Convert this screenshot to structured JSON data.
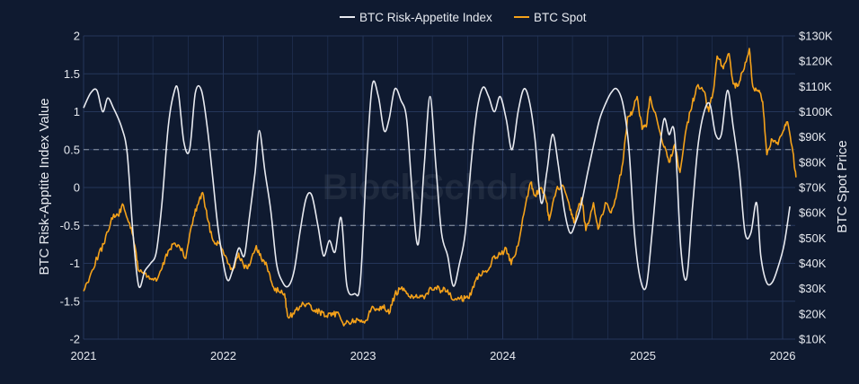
{
  "chart_data": {
    "type": "line",
    "watermark": "BlockScholes",
    "colors": {
      "background": "#0f1a30",
      "grid": "#25365a",
      "index_line": "#e8eaf0",
      "spot_line": "#f5a21a",
      "dashed_ref": "#8f99aa"
    },
    "x_ticks": [
      "2021",
      "2022",
      "2023",
      "2024",
      "2025",
      "2026"
    ],
    "y_left": {
      "label": "BTC Risk-Apptite Index Value",
      "range": [
        -2,
        2
      ],
      "ticks": [
        "2",
        "1.5",
        "1",
        "0.5",
        "0",
        "-0.5",
        "-1",
        "-1.5",
        "-2"
      ],
      "dashed_refs": [
        0.5,
        -0.5
      ]
    },
    "y_right": {
      "label": "BTC Spot Price",
      "range": [
        10000,
        130000
      ],
      "ticks": [
        "$130K",
        "$120K",
        "$110K",
        "$100K",
        "$90K",
        "$80K",
        "$70K",
        "$60K",
        "$50K",
        "$40K",
        "$30K",
        "$20K",
        "$10K"
      ]
    },
    "series": [
      {
        "name": "BTC Risk-Appetite Index",
        "axis": "left",
        "points": [
          [
            "2021-01-01",
            1.05
          ],
          [
            "2021-01-20",
            1.25
          ],
          [
            "2021-02-05",
            1.28
          ],
          [
            "2021-02-20",
            1.0
          ],
          [
            "2021-03-05",
            1.18
          ],
          [
            "2021-03-20",
            1.05
          ],
          [
            "2021-04-10",
            0.8
          ],
          [
            "2021-04-25",
            0.45
          ],
          [
            "2021-05-10",
            -0.6
          ],
          [
            "2021-05-25",
            -1.3
          ],
          [
            "2021-06-10",
            -1.1
          ],
          [
            "2021-06-25",
            -1.0
          ],
          [
            "2021-07-10",
            -0.85
          ],
          [
            "2021-07-25",
            -0.2
          ],
          [
            "2021-08-10",
            0.8
          ],
          [
            "2021-08-25",
            1.25
          ],
          [
            "2021-09-05",
            1.28
          ],
          [
            "2021-09-20",
            0.6
          ],
          [
            "2021-10-05",
            0.5
          ],
          [
            "2021-10-20",
            1.25
          ],
          [
            "2021-11-05",
            1.28
          ],
          [
            "2021-11-20",
            0.8
          ],
          [
            "2021-12-05",
            0.1
          ],
          [
            "2021-12-20",
            -0.6
          ],
          [
            "2022-01-10",
            -1.2
          ],
          [
            "2022-01-25",
            -1.1
          ],
          [
            "2022-02-10",
            -0.8
          ],
          [
            "2022-02-25",
            -0.9
          ],
          [
            "2022-03-10",
            -0.4
          ],
          [
            "2022-03-25",
            0.2
          ],
          [
            "2022-04-05",
            0.75
          ],
          [
            "2022-04-20",
            0.2
          ],
          [
            "2022-05-05",
            -0.3
          ],
          [
            "2022-05-20",
            -1.0
          ],
          [
            "2022-06-05",
            -1.25
          ],
          [
            "2022-06-20",
            -1.3
          ],
          [
            "2022-07-05",
            -1.1
          ],
          [
            "2022-07-20",
            -0.6
          ],
          [
            "2022-08-05",
            -0.15
          ],
          [
            "2022-08-20",
            -0.1
          ],
          [
            "2022-09-05",
            -0.5
          ],
          [
            "2022-09-20",
            -0.9
          ],
          [
            "2022-10-05",
            -0.7
          ],
          [
            "2022-10-20",
            -0.85
          ],
          [
            "2022-11-05",
            -0.4
          ],
          [
            "2022-11-20",
            -1.3
          ],
          [
            "2022-12-10",
            -1.4
          ],
          [
            "2022-12-25",
            -1.25
          ],
          [
            "2023-01-10",
            0.3
          ],
          [
            "2023-01-25",
            1.35
          ],
          [
            "2023-02-10",
            1.2
          ],
          [
            "2023-02-25",
            0.75
          ],
          [
            "2023-03-10",
            0.9
          ],
          [
            "2023-03-25",
            1.3
          ],
          [
            "2023-04-10",
            1.15
          ],
          [
            "2023-04-25",
            0.9
          ],
          [
            "2023-05-10",
            -0.1
          ],
          [
            "2023-05-25",
            -0.75
          ],
          [
            "2023-06-10",
            0.3
          ],
          [
            "2023-06-25",
            1.2
          ],
          [
            "2023-07-10",
            0.3
          ],
          [
            "2023-07-25",
            -0.6
          ],
          [
            "2023-08-10",
            -0.9
          ],
          [
            "2023-08-25",
            -1.3
          ],
          [
            "2023-09-10",
            -1.0
          ],
          [
            "2023-09-25",
            -0.6
          ],
          [
            "2023-10-10",
            0.3
          ],
          [
            "2023-10-25",
            1.0
          ],
          [
            "2023-11-10",
            1.32
          ],
          [
            "2023-11-25",
            1.2
          ],
          [
            "2023-12-10",
            1.0
          ],
          [
            "2023-12-25",
            1.2
          ],
          [
            "2024-01-10",
            0.9
          ],
          [
            "2024-01-25",
            0.5
          ],
          [
            "2024-02-10",
            1.0
          ],
          [
            "2024-02-25",
            1.3
          ],
          [
            "2024-03-10",
            1.15
          ],
          [
            "2024-03-25",
            0.65
          ],
          [
            "2024-04-10",
            -0.2
          ],
          [
            "2024-04-25",
            0.2
          ],
          [
            "2024-05-10",
            0.7
          ],
          [
            "2024-05-25",
            0.3
          ],
          [
            "2024-06-10",
            -0.3
          ],
          [
            "2024-06-25",
            -0.6
          ],
          [
            "2024-07-10",
            -0.45
          ],
          [
            "2024-07-25",
            -0.2
          ],
          [
            "2024-08-10",
            0.2
          ],
          [
            "2024-08-25",
            0.55
          ],
          [
            "2024-09-10",
            0.9
          ],
          [
            "2024-09-25",
            1.1
          ],
          [
            "2024-10-10",
            1.25
          ],
          [
            "2024-10-25",
            1.3
          ],
          [
            "2024-11-10",
            1.1
          ],
          [
            "2024-11-25",
            0.55
          ],
          [
            "2024-12-10",
            -0.6
          ],
          [
            "2024-12-25",
            -1.2
          ],
          [
            "2025-01-10",
            -1.3
          ],
          [
            "2025-01-25",
            -0.6
          ],
          [
            "2025-02-10",
            0.3
          ],
          [
            "2025-02-25",
            0.9
          ],
          [
            "2025-03-10",
            0.7
          ],
          [
            "2025-03-25",
            0.7
          ],
          [
            "2025-04-10",
            -0.8
          ],
          [
            "2025-04-25",
            -1.2
          ],
          [
            "2025-05-10",
            -0.3
          ],
          [
            "2025-05-25",
            0.55
          ],
          [
            "2025-06-10",
            1.0
          ],
          [
            "2025-06-25",
            1.1
          ],
          [
            "2025-07-10",
            0.7
          ],
          [
            "2025-07-25",
            0.7
          ],
          [
            "2025-08-10",
            1.28
          ],
          [
            "2025-08-25",
            0.8
          ],
          [
            "2025-09-10",
            0.2
          ],
          [
            "2025-09-25",
            -0.6
          ],
          [
            "2025-10-10",
            -0.6
          ],
          [
            "2025-10-25",
            -0.2
          ],
          [
            "2025-11-05",
            -0.9
          ],
          [
            "2025-11-20",
            -1.25
          ],
          [
            "2025-12-05",
            -1.25
          ],
          [
            "2025-12-20",
            -1.05
          ],
          [
            "2026-01-05",
            -0.75
          ],
          [
            "2026-01-20",
            -0.25
          ]
        ]
      },
      {
        "name": "BTC Spot",
        "axis": "right",
        "points": [
          [
            "2021-01-01",
            29000
          ],
          [
            "2021-01-20",
            36000
          ],
          [
            "2021-02-10",
            44000
          ],
          [
            "2021-02-25",
            48000
          ],
          [
            "2021-03-15",
            58000
          ],
          [
            "2021-04-01",
            59000
          ],
          [
            "2021-04-15",
            63000
          ],
          [
            "2021-05-01",
            56000
          ],
          [
            "2021-05-15",
            47000
          ],
          [
            "2021-05-25",
            37000
          ],
          [
            "2021-06-10",
            36000
          ],
          [
            "2021-06-25",
            34000
          ],
          [
            "2021-07-10",
            33000
          ],
          [
            "2021-07-25",
            38000
          ],
          [
            "2021-08-10",
            45000
          ],
          [
            "2021-08-25",
            48000
          ],
          [
            "2021-09-10",
            46000
          ],
          [
            "2021-09-25",
            42000
          ],
          [
            "2021-10-10",
            55000
          ],
          [
            "2021-10-25",
            63000
          ],
          [
            "2021-11-08",
            68000
          ],
          [
            "2021-11-20",
            58000
          ],
          [
            "2021-12-05",
            49000
          ],
          [
            "2021-12-20",
            48000
          ],
          [
            "2022-01-10",
            42000
          ],
          [
            "2022-01-25",
            37000
          ],
          [
            "2022-02-10",
            44000
          ],
          [
            "2022-02-25",
            38000
          ],
          [
            "2022-03-10",
            39000
          ],
          [
            "2022-03-28",
            47000
          ],
          [
            "2022-04-10",
            42000
          ],
          [
            "2022-04-25",
            39000
          ],
          [
            "2022-05-10",
            31000
          ],
          [
            "2022-05-25",
            29000
          ],
          [
            "2022-06-10",
            28000
          ],
          [
            "2022-06-18",
            19000
          ],
          [
            "2022-07-05",
            20000
          ],
          [
            "2022-07-20",
            23000
          ],
          [
            "2022-08-10",
            24000
          ],
          [
            "2022-08-25",
            21000
          ],
          [
            "2022-09-10",
            21000
          ],
          [
            "2022-09-25",
            19000
          ],
          [
            "2022-10-10",
            19200
          ],
          [
            "2022-10-25",
            20500
          ],
          [
            "2022-11-09",
            16500
          ],
          [
            "2022-11-25",
            16500
          ],
          [
            "2022-12-10",
            17200
          ],
          [
            "2022-12-25",
            16800
          ],
          [
            "2023-01-10",
            17500
          ],
          [
            "2023-01-25",
            23000
          ],
          [
            "2023-02-10",
            22000
          ],
          [
            "2023-02-25",
            23500
          ],
          [
            "2023-03-10",
            20000
          ],
          [
            "2023-03-25",
            27500
          ],
          [
            "2023-04-10",
            30000
          ],
          [
            "2023-04-25",
            28000
          ],
          [
            "2023-05-10",
            27000
          ],
          [
            "2023-05-25",
            26500
          ],
          [
            "2023-06-10",
            26000
          ],
          [
            "2023-06-25",
            30500
          ],
          [
            "2023-07-10",
            30500
          ],
          [
            "2023-07-25",
            29200
          ],
          [
            "2023-08-10",
            29500
          ],
          [
            "2023-08-20",
            26000
          ],
          [
            "2023-09-10",
            25800
          ],
          [
            "2023-09-25",
            26200
          ],
          [
            "2023-10-10",
            27500
          ],
          [
            "2023-10-25",
            34500
          ],
          [
            "2023-11-10",
            37000
          ],
          [
            "2023-11-25",
            37500
          ],
          [
            "2023-12-10",
            43000
          ],
          [
            "2023-12-25",
            43500
          ],
          [
            "2024-01-10",
            46000
          ],
          [
            "2024-01-23",
            39500
          ],
          [
            "2024-02-10",
            47000
          ],
          [
            "2024-02-28",
            62000
          ],
          [
            "2024-03-14",
            72000
          ],
          [
            "2024-03-25",
            67000
          ],
          [
            "2024-04-10",
            70000
          ],
          [
            "2024-04-25",
            64000
          ],
          [
            "2024-05-01",
            57000
          ],
          [
            "2024-05-20",
            69000
          ],
          [
            "2024-06-05",
            71000
          ],
          [
            "2024-06-25",
            61000
          ],
          [
            "2024-07-05",
            56000
          ],
          [
            "2024-07-25",
            66000
          ],
          [
            "2024-08-05",
            53000
          ],
          [
            "2024-08-25",
            64000
          ],
          [
            "2024-09-06",
            53500
          ],
          [
            "2024-09-25",
            64000
          ],
          [
            "2024-10-10",
            60000
          ],
          [
            "2024-10-25",
            68000
          ],
          [
            "2024-11-10",
            80000
          ],
          [
            "2024-11-22",
            98000
          ],
          [
            "2024-12-05",
            100000
          ],
          [
            "2024-12-17",
            106000
          ],
          [
            "2024-12-30",
            93000
          ],
          [
            "2025-01-10",
            94000
          ],
          [
            "2025-01-20",
            106000
          ],
          [
            "2025-02-05",
            98000
          ],
          [
            "2025-02-25",
            86000
          ],
          [
            "2025-03-10",
            80000
          ],
          [
            "2025-03-25",
            87000
          ],
          [
            "2025-04-08",
            76000
          ],
          [
            "2025-04-25",
            94000
          ],
          [
            "2025-05-10",
            103000
          ],
          [
            "2025-05-22",
            110000
          ],
          [
            "2025-06-10",
            108000
          ],
          [
            "2025-06-22",
            100000
          ],
          [
            "2025-07-05",
            109000
          ],
          [
            "2025-07-14",
            122000
          ],
          [
            "2025-07-30",
            117000
          ],
          [
            "2025-08-14",
            123000
          ],
          [
            "2025-08-25",
            111000
          ],
          [
            "2025-09-05",
            110000
          ],
          [
            "2025-09-20",
            116000
          ],
          [
            "2025-10-06",
            125000
          ],
          [
            "2025-10-15",
            110000
          ],
          [
            "2025-10-30",
            108000
          ],
          [
            "2025-11-10",
            104000
          ],
          [
            "2025-11-21",
            83000
          ],
          [
            "2025-12-05",
            89000
          ],
          [
            "2025-12-20",
            87000
          ],
          [
            "2026-01-05",
            93000
          ],
          [
            "2026-01-14",
            96000
          ],
          [
            "2026-01-28",
            84000
          ],
          [
            "2026-02-05",
            74000
          ]
        ]
      }
    ],
    "legend_position": "top-center"
  }
}
